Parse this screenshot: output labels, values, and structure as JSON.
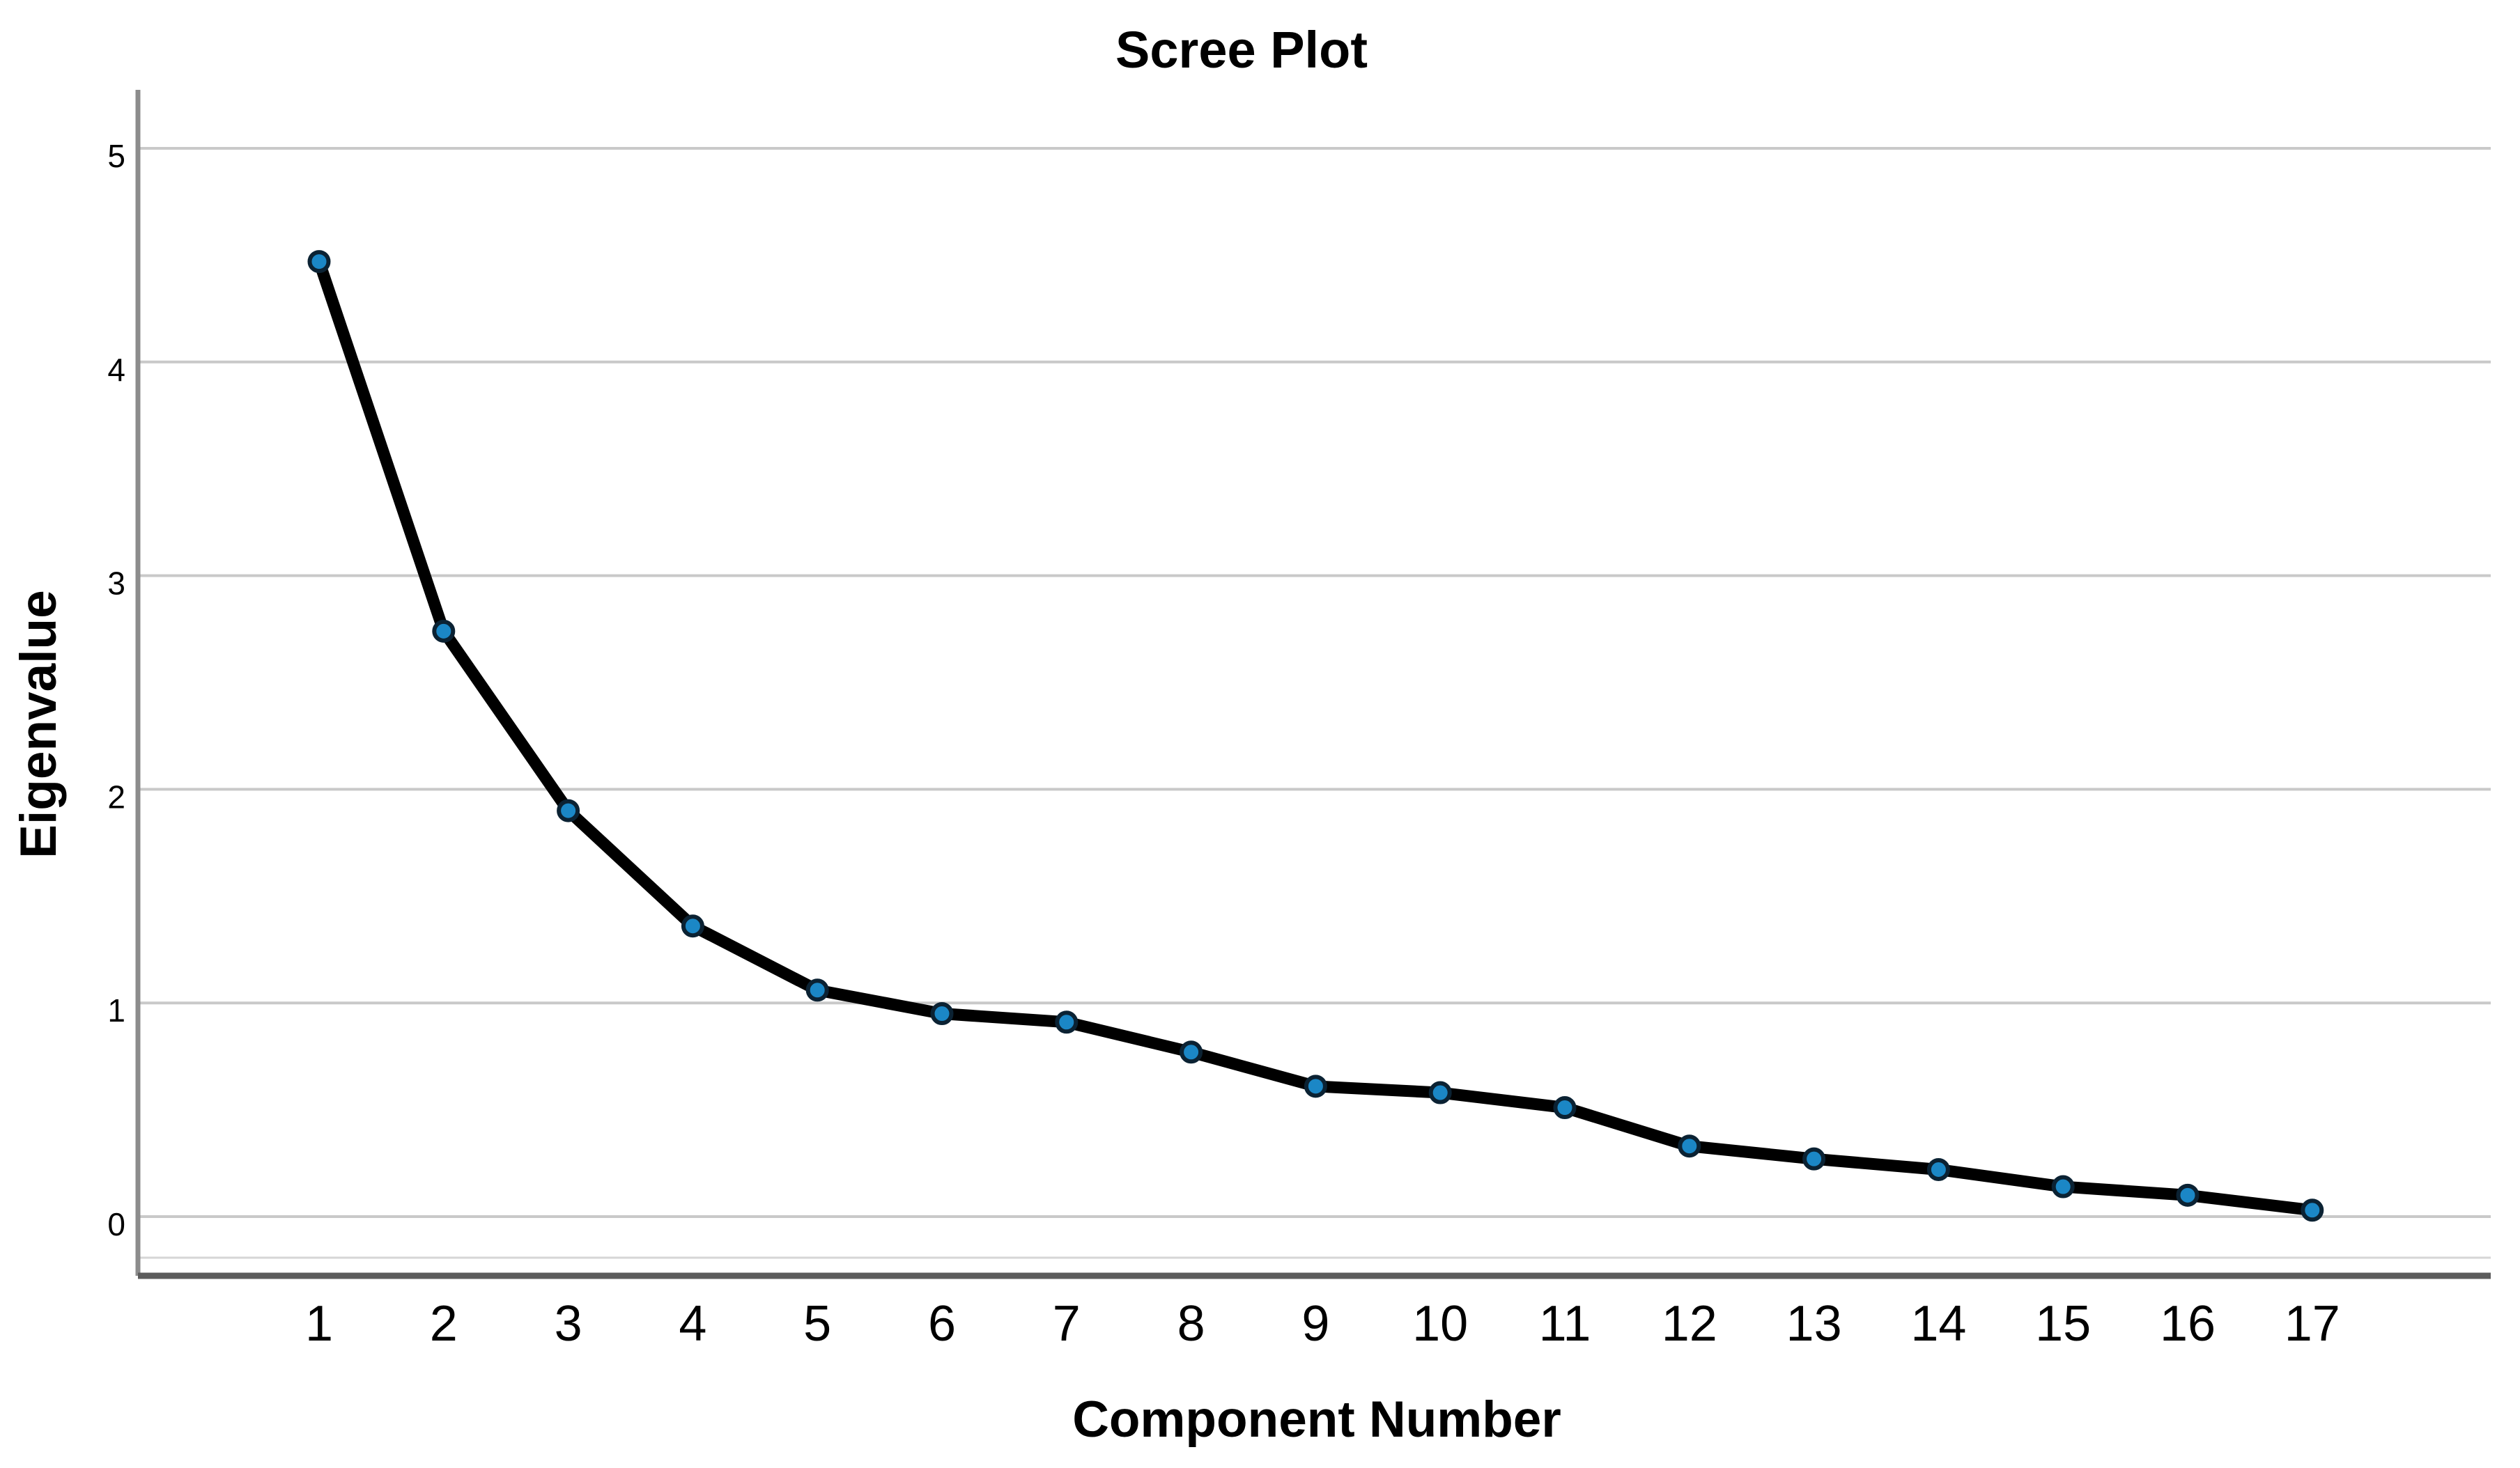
{
  "chart_data": {
    "type": "line",
    "title": "Scree Plot",
    "xlabel": "Component Number",
    "ylabel": "Eigenvalue",
    "categories": [
      1,
      2,
      3,
      4,
      5,
      6,
      7,
      8,
      9,
      10,
      11,
      12,
      13,
      14,
      15,
      16,
      17
    ],
    "series": [
      {
        "name": "Eigenvalue",
        "values": [
          4.47,
          2.74,
          1.9,
          1.36,
          1.06,
          0.95,
          0.91,
          0.77,
          0.61,
          0.58,
          0.51,
          0.33,
          0.27,
          0.22,
          0.14,
          0.1,
          0.03
        ]
      }
    ],
    "ylim": [
      0,
      5
    ],
    "yticks": [
      0,
      1,
      2,
      3,
      4,
      5
    ],
    "grid": "horizontal",
    "legend": "none",
    "marker": "circle",
    "colors": {
      "line": "#000000",
      "marker_fill": "#1b87c6",
      "marker_border": "#0b2233",
      "gridline": "#c9c9c9",
      "baseline_gridline": "#d6d6d6",
      "y_axis_line": "#8c8c8c",
      "x_axis_line": "#5c5c5c",
      "text": "#000000",
      "background": "#ffffff"
    }
  }
}
